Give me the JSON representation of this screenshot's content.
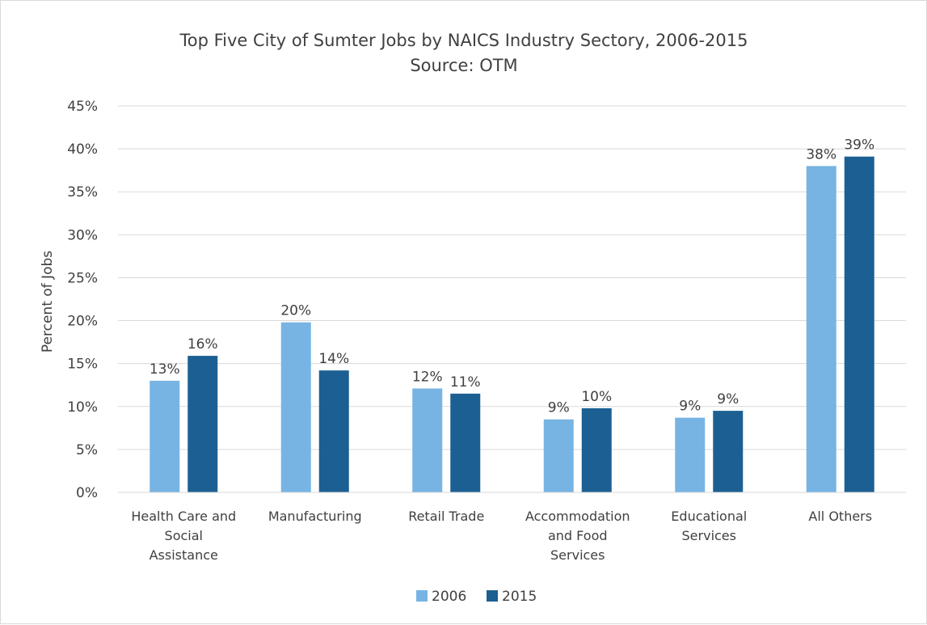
{
  "chart_data": {
    "type": "bar",
    "title": "Top Five City of Sumter Jobs by NAICS Industry Sectory, 2006-2015",
    "subtitle": "Source: OTM",
    "xlabel": "",
    "ylabel": "Percent of Jobs",
    "categories": [
      [
        "Health Care and",
        "Social",
        "Assistance"
      ],
      [
        "Manufacturing"
      ],
      [
        "Retail Trade"
      ],
      [
        "Accommodation",
        "and Food",
        "Services"
      ],
      [
        "Educational",
        "Services"
      ],
      [
        "All Others"
      ]
    ],
    "series": [
      {
        "name": "2006",
        "color": "#77b4e3",
        "values": [
          13.0,
          19.8,
          12.1,
          8.5,
          8.7,
          38.0
        ],
        "labels": [
          "13%",
          "20%",
          "12%",
          "9%",
          "9%",
          "38%"
        ]
      },
      {
        "name": "2015",
        "color": "#1c6093",
        "values": [
          15.9,
          14.2,
          11.5,
          9.8,
          9.5,
          39.1
        ],
        "labels": [
          "16%",
          "14%",
          "11%",
          "10%",
          "9%",
          "39%"
        ]
      }
    ],
    "ylim": [
      0,
      45
    ],
    "yticks": [
      0,
      5,
      10,
      15,
      20,
      25,
      30,
      35,
      40,
      45
    ],
    "ytick_labels": [
      "0%",
      "5%",
      "10%",
      "15%",
      "20%",
      "25%",
      "30%",
      "35%",
      "40%",
      "45%"
    ],
    "grid": true,
    "legend_position": "bottom",
    "gridline_color": "#d9d9d9"
  }
}
